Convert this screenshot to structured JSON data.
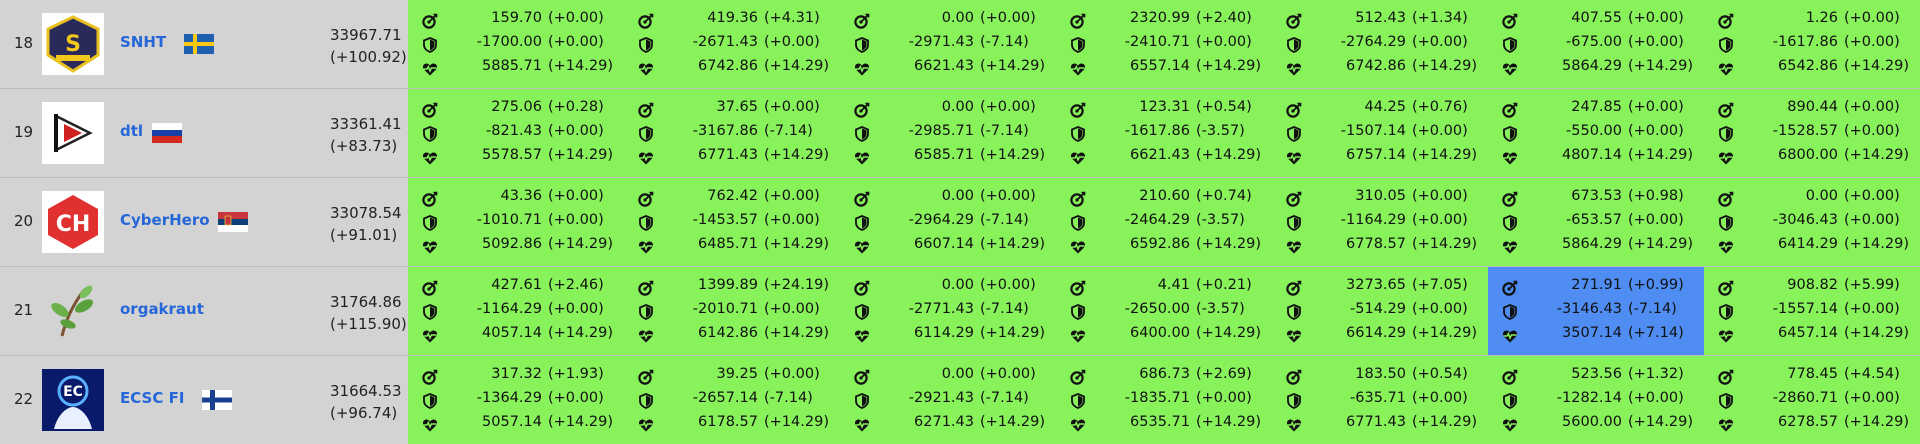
{
  "colors": {
    "service_bg": "#88f25a",
    "selected_bg": "#4f8df2",
    "team_link": "#2566d8",
    "left_bg": "#d3d3d3"
  },
  "icons": {
    "attack": "target-icon",
    "defense": "shield-icon",
    "sla": "heartbeat-icon"
  },
  "teams": [
    {
      "rank": "18",
      "name": "SNHT",
      "flag": "sweden",
      "logo": "snht-logo",
      "score": "33967.71",
      "score_delta": "(+100.92)",
      "selected_service": -1,
      "services": [
        {
          "attack": "159.70",
          "attack_delta": "(+0.00)",
          "defense": "-1700.00",
          "defense_delta": "(+0.00)",
          "sla": "5885.71",
          "sla_delta": "(+14.29)"
        },
        {
          "attack": "419.36",
          "attack_delta": "(+4.31)",
          "defense": "-2671.43",
          "defense_delta": "(+0.00)",
          "sla": "6742.86",
          "sla_delta": "(+14.29)"
        },
        {
          "attack": "0.00",
          "attack_delta": "(+0.00)",
          "defense": "-2971.43",
          "defense_delta": "(-7.14)",
          "sla": "6621.43",
          "sla_delta": "(+14.29)"
        },
        {
          "attack": "2320.99",
          "attack_delta": "(+2.40)",
          "defense": "-2410.71",
          "defense_delta": "(+0.00)",
          "sla": "6557.14",
          "sla_delta": "(+14.29)"
        },
        {
          "attack": "512.43",
          "attack_delta": "(+1.34)",
          "defense": "-2764.29",
          "defense_delta": "(+0.00)",
          "sla": "6742.86",
          "sla_delta": "(+14.29)"
        },
        {
          "attack": "407.55",
          "attack_delta": "(+0.00)",
          "defense": "-675.00",
          "defense_delta": "(+0.00)",
          "sla": "5864.29",
          "sla_delta": "(+14.29)"
        },
        {
          "attack": "1.26",
          "attack_delta": "(+0.00)",
          "defense": "-1617.86",
          "defense_delta": "(+0.00)",
          "sla": "6542.86",
          "sla_delta": "(+14.29)"
        }
      ]
    },
    {
      "rank": "19",
      "name": "dtl",
      "flag": "russia",
      "logo": "dtl-logo",
      "score": "33361.41",
      "score_delta": "(+83.73)",
      "selected_service": -1,
      "services": [
        {
          "attack": "275.06",
          "attack_delta": "(+0.28)",
          "defense": "-821.43",
          "defense_delta": "(+0.00)",
          "sla": "5578.57",
          "sla_delta": "(+14.29)"
        },
        {
          "attack": "37.65",
          "attack_delta": "(+0.00)",
          "defense": "-3167.86",
          "defense_delta": "(-7.14)",
          "sla": "6771.43",
          "sla_delta": "(+14.29)"
        },
        {
          "attack": "0.00",
          "attack_delta": "(+0.00)",
          "defense": "-2985.71",
          "defense_delta": "(-7.14)",
          "sla": "6585.71",
          "sla_delta": "(+14.29)"
        },
        {
          "attack": "123.31",
          "attack_delta": "(+0.54)",
          "defense": "-1617.86",
          "defense_delta": "(-3.57)",
          "sla": "6621.43",
          "sla_delta": "(+14.29)"
        },
        {
          "attack": "44.25",
          "attack_delta": "(+0.76)",
          "defense": "-1507.14",
          "defense_delta": "(+0.00)",
          "sla": "6757.14",
          "sla_delta": "(+14.29)"
        },
        {
          "attack": "247.85",
          "attack_delta": "(+0.00)",
          "defense": "-550.00",
          "defense_delta": "(+0.00)",
          "sla": "4807.14",
          "sla_delta": "(+14.29)"
        },
        {
          "attack": "890.44",
          "attack_delta": "(+0.00)",
          "defense": "-1528.57",
          "defense_delta": "(+0.00)",
          "sla": "6800.00",
          "sla_delta": "(+14.29)"
        }
      ]
    },
    {
      "rank": "20",
      "name": "CyberHero",
      "flag": "serbia",
      "logo": "cyberhero-logo",
      "score": "33078.54",
      "score_delta": "(+91.01)",
      "selected_service": -1,
      "services": [
        {
          "attack": "43.36",
          "attack_delta": "(+0.00)",
          "defense": "-1010.71",
          "defense_delta": "(+0.00)",
          "sla": "5092.86",
          "sla_delta": "(+14.29)"
        },
        {
          "attack": "762.42",
          "attack_delta": "(+0.00)",
          "defense": "-1453.57",
          "defense_delta": "(+0.00)",
          "sla": "6485.71",
          "sla_delta": "(+14.29)"
        },
        {
          "attack": "0.00",
          "attack_delta": "(+0.00)",
          "defense": "-2964.29",
          "defense_delta": "(-7.14)",
          "sla": "6607.14",
          "sla_delta": "(+14.29)"
        },
        {
          "attack": "210.60",
          "attack_delta": "(+0.74)",
          "defense": "-2464.29",
          "defense_delta": "(-3.57)",
          "sla": "6592.86",
          "sla_delta": "(+14.29)"
        },
        {
          "attack": "310.05",
          "attack_delta": "(+0.00)",
          "defense": "-1164.29",
          "defense_delta": "(+0.00)",
          "sla": "6778.57",
          "sla_delta": "(+14.29)"
        },
        {
          "attack": "673.53",
          "attack_delta": "(+0.98)",
          "defense": "-653.57",
          "defense_delta": "(+0.00)",
          "sla": "5864.29",
          "sla_delta": "(+14.29)"
        },
        {
          "attack": "0.00",
          "attack_delta": "(+0.00)",
          "defense": "-3046.43",
          "defense_delta": "(+0.00)",
          "sla": "6414.29",
          "sla_delta": "(+14.29)"
        }
      ]
    },
    {
      "rank": "21",
      "name": "orgakraut",
      "flag": "",
      "logo": "orgakraut-logo",
      "score": "31764.86",
      "score_delta": "(+115.90)",
      "selected_service": 5,
      "services": [
        {
          "attack": "427.61",
          "attack_delta": "(+2.46)",
          "defense": "-1164.29",
          "defense_delta": "(+0.00)",
          "sla": "4057.14",
          "sla_delta": "(+14.29)"
        },
        {
          "attack": "1399.89",
          "attack_delta": "(+24.19)",
          "defense": "-2010.71",
          "defense_delta": "(+0.00)",
          "sla": "6142.86",
          "sla_delta": "(+14.29)"
        },
        {
          "attack": "0.00",
          "attack_delta": "(+0.00)",
          "defense": "-2771.43",
          "defense_delta": "(-7.14)",
          "sla": "6114.29",
          "sla_delta": "(+14.29)"
        },
        {
          "attack": "4.41",
          "attack_delta": "(+0.21)",
          "defense": "-2650.00",
          "defense_delta": "(-3.57)",
          "sla": "6400.00",
          "sla_delta": "(+14.29)"
        },
        {
          "attack": "3273.65",
          "attack_delta": "(+7.05)",
          "defense": "-514.29",
          "defense_delta": "(+0.00)",
          "sla": "6614.29",
          "sla_delta": "(+14.29)"
        },
        {
          "attack": "271.91",
          "attack_delta": "(+0.99)",
          "defense": "-3146.43",
          "defense_delta": "(-7.14)",
          "sla": "3507.14",
          "sla_delta": "(+7.14)"
        },
        {
          "attack": "908.82",
          "attack_delta": "(+5.99)",
          "defense": "-1557.14",
          "defense_delta": "(+0.00)",
          "sla": "6457.14",
          "sla_delta": "(+14.29)"
        }
      ]
    },
    {
      "rank": "22",
      "name": "ECSC FI",
      "flag": "finland",
      "logo": "ecsc-fi-logo",
      "score": "31664.53",
      "score_delta": "(+96.74)",
      "selected_service": -1,
      "services": [
        {
          "attack": "317.32",
          "attack_delta": "(+1.93)",
          "defense": "-1364.29",
          "defense_delta": "(+0.00)",
          "sla": "5057.14",
          "sla_delta": "(+14.29)"
        },
        {
          "attack": "39.25",
          "attack_delta": "(+0.00)",
          "defense": "-2657.14",
          "defense_delta": "(-7.14)",
          "sla": "6178.57",
          "sla_delta": "(+14.29)"
        },
        {
          "attack": "0.00",
          "attack_delta": "(+0.00)",
          "defense": "-2921.43",
          "defense_delta": "(-7.14)",
          "sla": "6271.43",
          "sla_delta": "(+14.29)"
        },
        {
          "attack": "686.73",
          "attack_delta": "(+2.69)",
          "defense": "-1835.71",
          "defense_delta": "(+0.00)",
          "sla": "6535.71",
          "sla_delta": "(+14.29)"
        },
        {
          "attack": "183.50",
          "attack_delta": "(+0.54)",
          "defense": "-635.71",
          "defense_delta": "(+0.00)",
          "sla": "6771.43",
          "sla_delta": "(+14.29)"
        },
        {
          "attack": "523.56",
          "attack_delta": "(+1.32)",
          "defense": "-1282.14",
          "defense_delta": "(+0.00)",
          "sla": "5600.00",
          "sla_delta": "(+14.29)"
        },
        {
          "attack": "778.45",
          "attack_delta": "(+4.54)",
          "defense": "-2860.71",
          "defense_delta": "(+0.00)",
          "sla": "6278.57",
          "sla_delta": "(+14.29)"
        }
      ]
    }
  ]
}
